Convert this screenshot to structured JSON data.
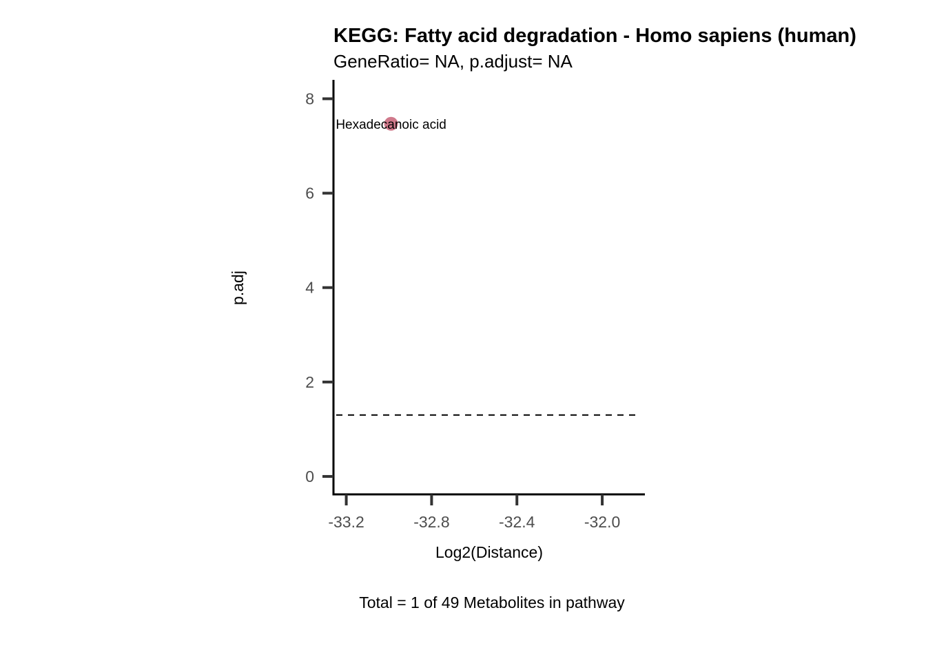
{
  "chart_data": {
    "type": "scatter",
    "title": "KEGG: Fatty acid degradation - Homo sapiens (human)",
    "subtitle": "GeneRatio= NA, p.adjust= NA",
    "xlabel": "Log2(Distance)",
    "ylabel": "p.adj",
    "caption": "Total = 1 of 49 Metabolites in pathway",
    "xlim": [
      -33.26,
      -31.8
    ],
    "ylim": [
      -0.38,
      8.4
    ],
    "x_ticks": [
      -33.2,
      -32.8,
      -32.4,
      -32.0
    ],
    "x_tick_labels": [
      "-33.2",
      "-32.8",
      "-32.4",
      "-32.0"
    ],
    "y_ticks": [
      0,
      2,
      4,
      6,
      8
    ],
    "y_tick_labels": [
      "0",
      "2",
      "4",
      "6",
      "8"
    ],
    "threshold": {
      "y": 1.3,
      "style": "dashed"
    },
    "points": [
      {
        "x": -32.99,
        "y": 7.47,
        "label": "Hexadecanoic acid"
      }
    ],
    "point_color": "#cb6a7e",
    "grid": false
  }
}
